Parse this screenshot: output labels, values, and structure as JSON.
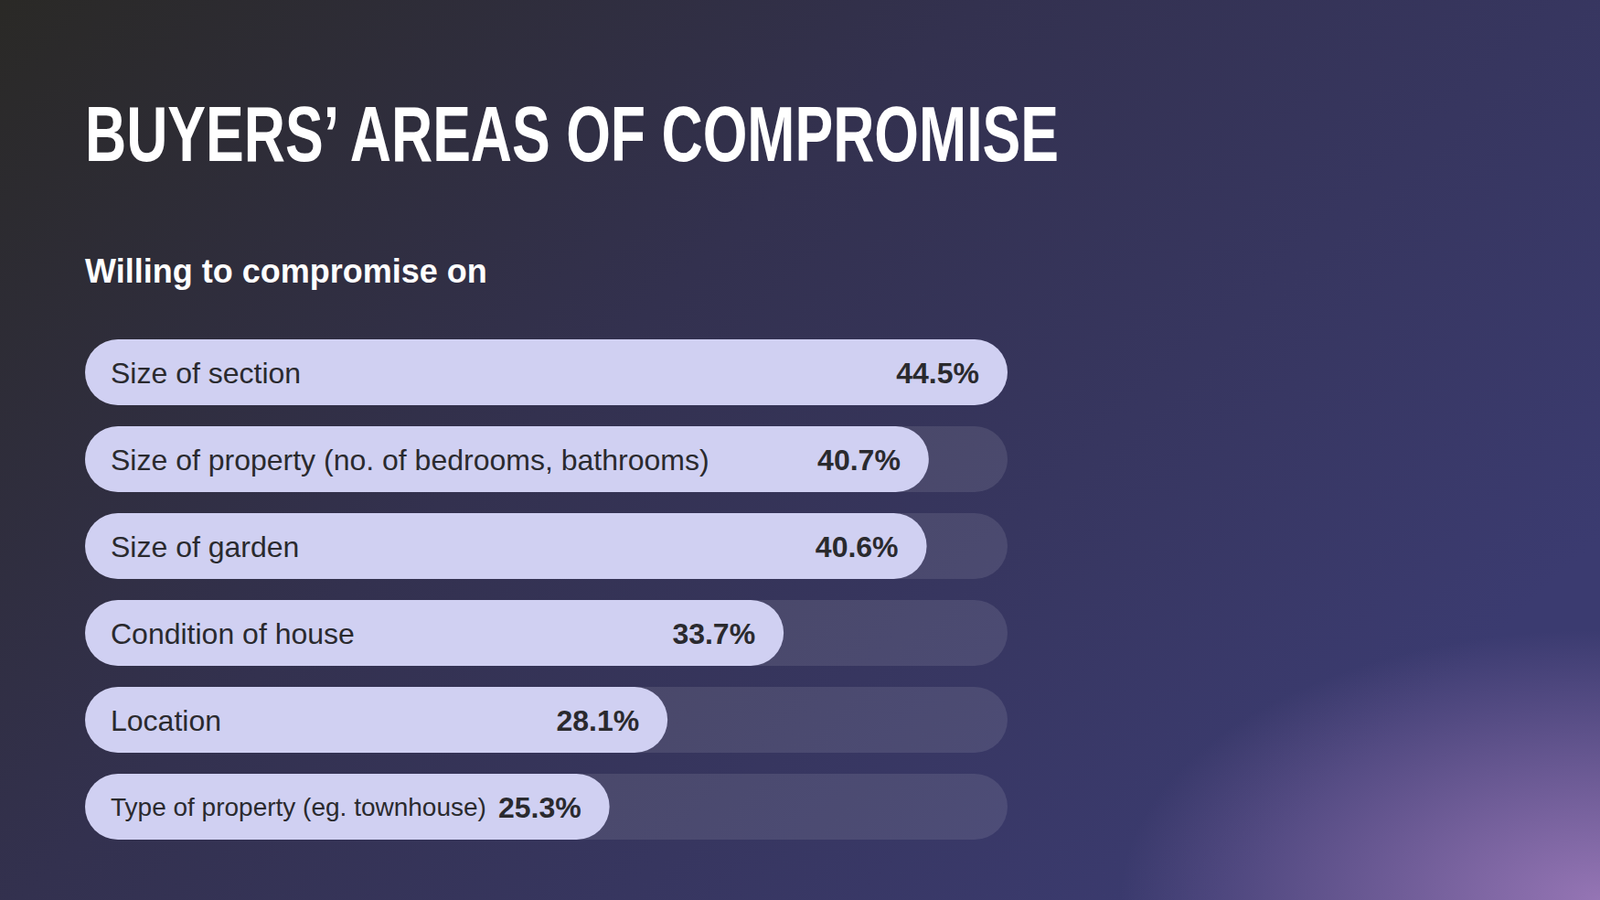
{
  "chart_data": {
    "type": "bar",
    "orientation": "horizontal",
    "title": "BUYERS’ AREAS OF COMPROMISE",
    "subtitle": "Willing to compromise on",
    "categories": [
      "Size of section",
      "Size of property (no. of bedrooms, bathrooms)",
      "Size of garden",
      "Condition of house",
      "Location",
      "Type of property (eg. townhouse)"
    ],
    "values": [
      44.5,
      40.7,
      40.6,
      33.7,
      28.1,
      25.3
    ],
    "value_labels": [
      "44.5%",
      "40.7%",
      "40.6%",
      "33.7%",
      "28.1%",
      "25.3%"
    ],
    "data_labels": true,
    "color": "#d0d0f2",
    "xlim": [
      0,
      44.5
    ],
    "tick_labels": false
  }
}
